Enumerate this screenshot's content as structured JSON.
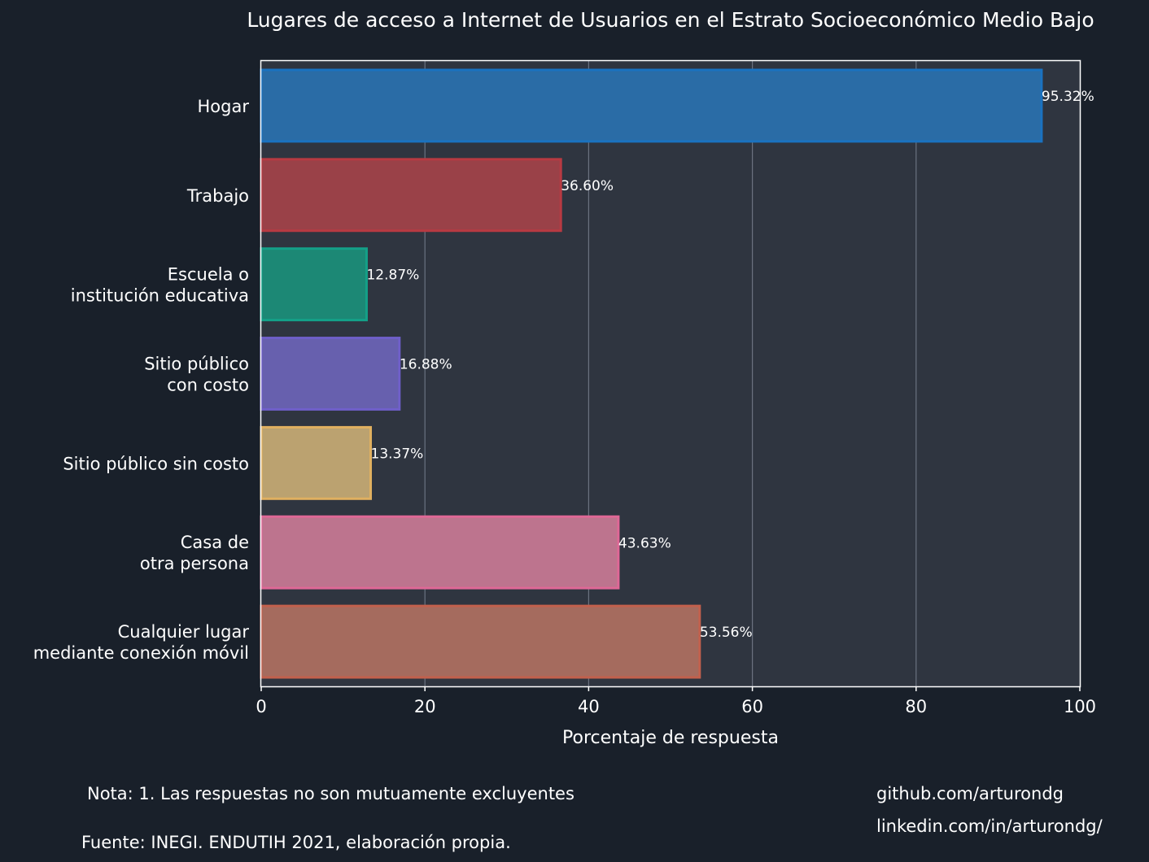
{
  "chart_data": {
    "type": "bar",
    "orientation": "horizontal",
    "title": "Lugares de acceso a Internet de Usuarios en el Estrato Socioeconómico Medio Bajo",
    "xlabel": "Porcentaje de respuesta",
    "ylabel": "",
    "xlim": [
      0,
      100
    ],
    "xticks": [
      0,
      20,
      40,
      60,
      80,
      100
    ],
    "grid": "vertical",
    "categories": [
      [
        "Hogar"
      ],
      [
        "Trabajo"
      ],
      [
        "Escuela o",
        "institución educativa"
      ],
      [
        "Sitio público",
        "con costo"
      ],
      [
        "Sitio público sin costo"
      ],
      [
        "Casa de",
        "otra persona"
      ],
      [
        "Cualquier lugar",
        "mediante conexión móvil"
      ]
    ],
    "values": [
      95.32,
      36.6,
      12.87,
      16.88,
      13.37,
      43.63,
      53.56
    ],
    "value_labels": [
      "95.32%",
      "36.60%",
      "12.87%",
      "16.88%",
      "13.37%",
      "43.63%",
      "53.56%"
    ],
    "colors": [
      {
        "fill": "#2a6ca6",
        "stroke": "#1a72c0"
      },
      {
        "fill": "#9a4148",
        "stroke": "#b83a42"
      },
      {
        "fill": "#1c8875",
        "stroke": "#14a088"
      },
      {
        "fill": "#6760ae",
        "stroke": "#6f5fc9"
      },
      {
        "fill": "#bba270",
        "stroke": "#e0b060"
      },
      {
        "fill": "#bd748e",
        "stroke": "#de6896"
      },
      {
        "fill": "#a56b5e",
        "stroke": "#c2604d"
      }
    ]
  },
  "theme": {
    "background": "#19202a",
    "plot_background": "#2f3540",
    "grid_color": "#7a8290",
    "text_color": "#ffffff"
  },
  "footer": {
    "note": "Nota: 1. Las respuestas no son mutuamente excluyentes",
    "source": "Fuente: INEGI. ENDUTIH 2021, elaboración propia.",
    "github": "github.com/arturondg",
    "linkedin": "linkedin.com/in/arturondg/"
  }
}
